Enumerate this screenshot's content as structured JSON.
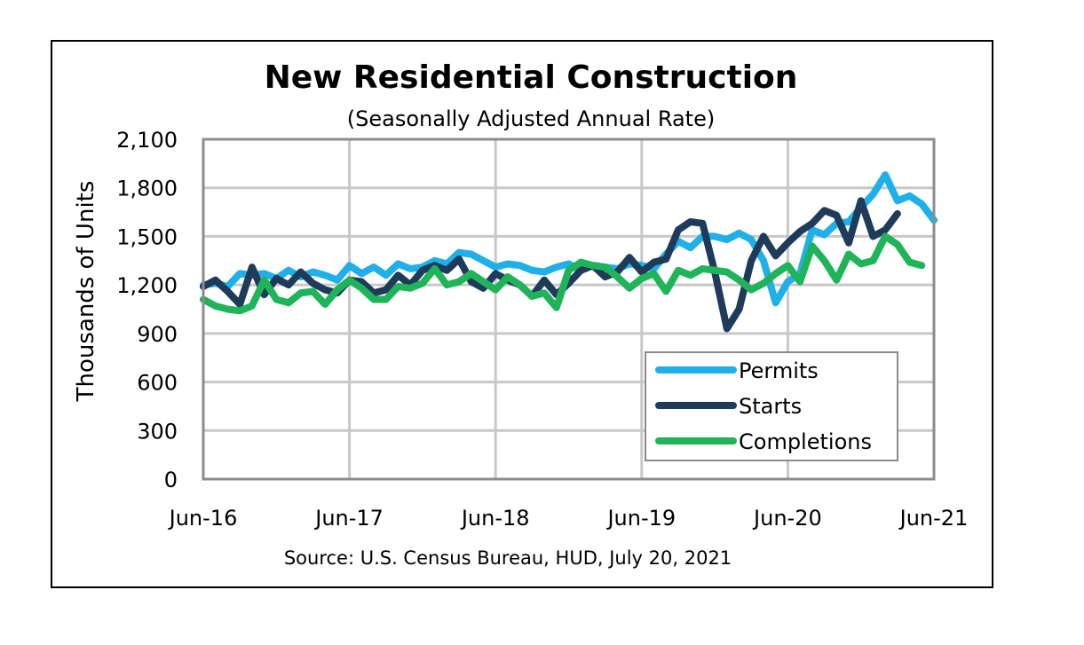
{
  "chart_data": {
    "type": "line",
    "title": "New Residential Construction",
    "subtitle": "(Seasonally Adjusted Annual Rate)",
    "ylabel": "Thousands of Units",
    "xlabel": "",
    "source": "Source:  U.S. Census Bureau, HUD, July 20, 2021",
    "ylim": [
      0,
      2100
    ],
    "yticks": [
      0,
      300,
      600,
      900,
      1200,
      1500,
      1800,
      2100
    ],
    "ytick_labels": [
      "0",
      "300",
      "600",
      "900",
      "1,200",
      "1,500",
      "1,800",
      "2,100"
    ],
    "xlim": [
      0,
      60
    ],
    "xticks": [
      0,
      12,
      24,
      36,
      48,
      60
    ],
    "xtick_labels": [
      "Jun-16",
      "Jun-17",
      "Jun-18",
      "Jun-19",
      "Jun-20",
      "Jun-21"
    ],
    "grid": true,
    "legend_position": "bottom-right",
    "series": [
      {
        "name": "Permits",
        "color": "#1fb0ea",
        "values": [
          1200,
          1210,
          1190,
          1270,
          1260,
          1270,
          1240,
          1290,
          1250,
          1280,
          1260,
          1230,
          1320,
          1270,
          1310,
          1260,
          1330,
          1300,
          1310,
          1350,
          1330,
          1400,
          1390,
          1350,
          1310,
          1330,
          1320,
          1290,
          1280,
          1310,
          1330,
          1290,
          1320,
          1310,
          1300,
          1330,
          1320,
          1300,
          1390,
          1470,
          1430,
          1500,
          1500,
          1480,
          1520,
          1480,
          1350,
          1090,
          1220,
          1270,
          1540,
          1510,
          1580,
          1590,
          1680,
          1760,
          1880,
          1720,
          1750,
          1700,
          1600
        ]
      },
      {
        "name": "Starts",
        "color": "#1f3b5a",
        "values": [
          1190,
          1230,
          1160,
          1080,
          1310,
          1140,
          1240,
          1200,
          1280,
          1210,
          1170,
          1150,
          1230,
          1220,
          1150,
          1170,
          1260,
          1200,
          1290,
          1320,
          1290,
          1360,
          1220,
          1180,
          1270,
          1230,
          1200,
          1130,
          1230,
          1140,
          1210,
          1290,
          1320,
          1250,
          1280,
          1370,
          1280,
          1340,
          1360,
          1540,
          1590,
          1580,
          1280,
          930,
          1050,
          1350,
          1500,
          1380,
          1460,
          1530,
          1580,
          1660,
          1630,
          1460,
          1720,
          1500,
          1540,
          1640
        ]
      },
      {
        "name": "Completions",
        "color": "#1fb35a",
        "values": [
          1110,
          1070,
          1050,
          1040,
          1070,
          1230,
          1110,
          1090,
          1150,
          1160,
          1080,
          1170,
          1230,
          1180,
          1110,
          1110,
          1190,
          1180,
          1210,
          1300,
          1200,
          1220,
          1270,
          1220,
          1170,
          1250,
          1200,
          1130,
          1150,
          1060,
          1290,
          1340,
          1320,
          1310,
          1250,
          1180,
          1240,
          1270,
          1160,
          1290,
          1260,
          1300,
          1290,
          1280,
          1230,
          1170,
          1210,
          1270,
          1320,
          1220,
          1440,
          1350,
          1230,
          1390,
          1330,
          1350,
          1500,
          1450,
          1340,
          1320
        ]
      }
    ]
  }
}
